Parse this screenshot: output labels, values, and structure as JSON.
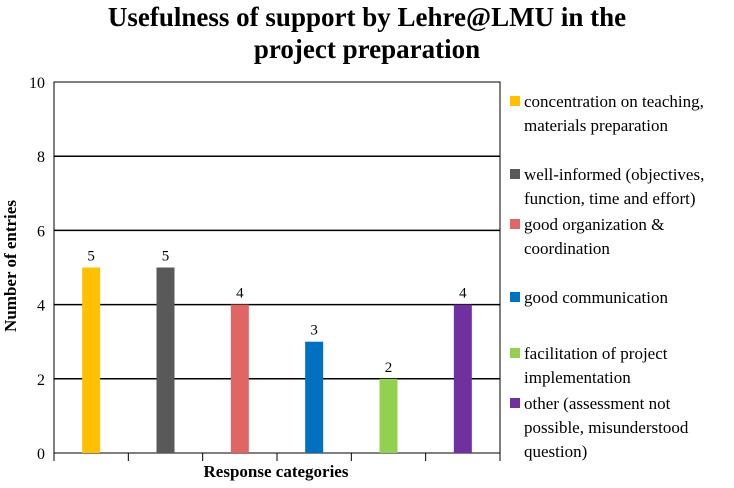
{
  "chart_data": {
    "type": "bar",
    "title_lines": [
      "Usefulness of support by Lehre@LMU in the",
      "project preparation"
    ],
    "xlabel": "Response categories",
    "ylabel": "Number of entries",
    "ylim": [
      0,
      10
    ],
    "yticks": [
      0,
      2,
      4,
      6,
      8,
      10
    ],
    "grid": true,
    "legend_position": "right",
    "categories": [
      {
        "label_lines": [
          "concentration on teaching,",
          "materials preparation"
        ],
        "value": 5,
        "color": "#FFC000"
      },
      {
        "label_lines": [
          "well-informed (objectives,",
          "function, time and effort)"
        ],
        "value": 5,
        "color": "#595959"
      },
      {
        "label_lines": [
          "good organization &",
          "coordination"
        ],
        "value": 4,
        "color": "#E06666"
      },
      {
        "label_lines": [
          "good communication"
        ],
        "value": 3,
        "color": "#0070C0"
      },
      {
        "label_lines": [
          "facilitation of project",
          "implementation"
        ],
        "value": 2,
        "color": "#92D050"
      },
      {
        "label_lines": [
          "other (assessment not",
          "possible, misunderstood",
          "question)"
        ],
        "value": 4,
        "color": "#7030A0"
      }
    ]
  }
}
